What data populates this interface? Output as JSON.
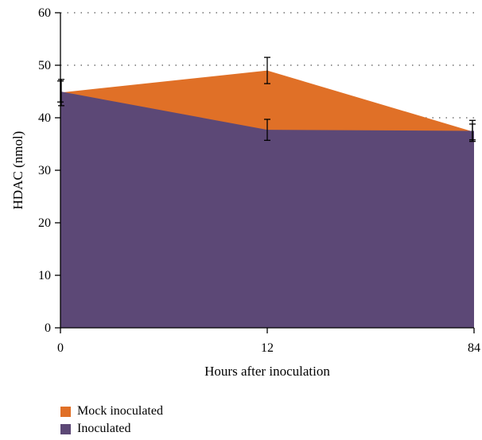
{
  "chart_data": {
    "type": "area",
    "xlabel": "Hours after inoculation",
    "ylabel": "HDAC (nmol)",
    "categories": [
      "0",
      "12",
      "84"
    ],
    "ylim": [
      0,
      60
    ],
    "yticks": [
      "0",
      "10",
      "20",
      "30",
      "40",
      "50",
      "60"
    ],
    "grid": "dotted horizontal",
    "legend_position": "bottom-left",
    "series": [
      {
        "name": "Mock inoculated",
        "color": "#E07027",
        "values": [
          44.8,
          49.0,
          37.3
        ],
        "error": [
          2.5,
          2.5,
          1.5
        ]
      },
      {
        "name": "Inoculated",
        "color": "#5C4876",
        "values": [
          45.0,
          37.7,
          37.5
        ],
        "error": [
          2.0,
          2.0,
          2.0
        ]
      }
    ]
  }
}
